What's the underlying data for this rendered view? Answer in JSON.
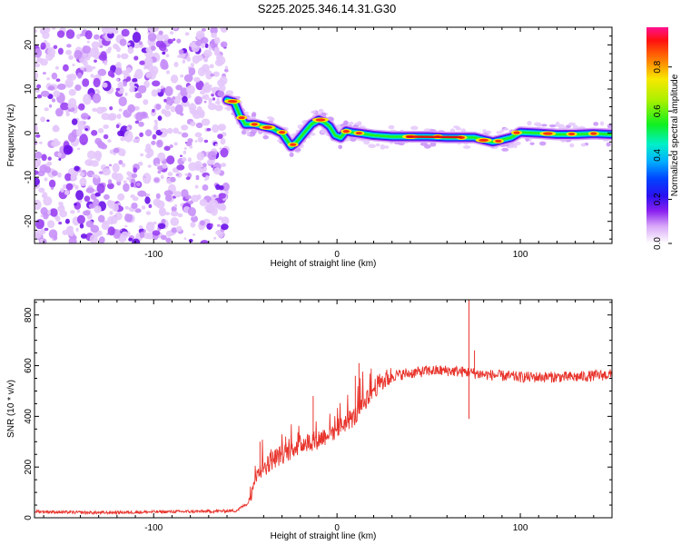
{
  "title": "S225.2025.346.14.31.G30",
  "chart_data": [
    {
      "type": "heatmap",
      "name": "spectrogram",
      "xlabel": "Height of straight line (km)",
      "ylabel": "Frequency (Hz)",
      "xlim": [
        -165,
        150
      ],
      "ylim": [
        -25,
        24
      ],
      "xticks": [
        -100,
        0,
        100
      ],
      "yticks": [
        -20,
        -10,
        0,
        10,
        20
      ],
      "noise_region_x": [
        -165,
        -60
      ],
      "ridge": {
        "x": [
          -60,
          -56,
          -53,
          -50,
          -45,
          -40,
          -35,
          -30,
          -25,
          -22,
          -18,
          -14,
          -10,
          -7,
          -4,
          -1,
          2,
          5,
          8,
          12,
          20,
          30,
          40,
          50,
          60,
          70,
          75,
          80,
          85,
          90,
          95,
          100,
          110,
          120,
          130,
          140,
          150
        ],
        "y": [
          7.5,
          7,
          4,
          2,
          2,
          1.5,
          1,
          0,
          -3,
          -2,
          0,
          2,
          3,
          2.5,
          1.5,
          -0.5,
          -1,
          0.5,
          0.2,
          0,
          -0.5,
          -0.8,
          -0.8,
          -0.8,
          -1,
          -1,
          -1,
          -1.5,
          -2,
          -1.5,
          -1,
          0.2,
          0,
          -0.3,
          -0.3,
          -0.1,
          -0.3
        ]
      },
      "colorbar": {
        "label": "Normalized spectral amplitude",
        "ticks": [
          "0.0",
          "0.2",
          "0.4",
          "0.6",
          "0.8"
        ],
        "range": [
          0,
          0.98
        ]
      }
    },
    {
      "type": "line",
      "name": "snr",
      "xlabel": "Height of straight line (km)",
      "ylabel": "SNR (10 * v/v)",
      "xlim": [
        -165,
        150
      ],
      "ylim": [
        0,
        860
      ],
      "xticks": [
        -100,
        0,
        100
      ],
      "yticks": [
        0,
        200,
        400,
        600,
        800
      ],
      "color": "#e8342c",
      "series": [
        {
          "name": "SNR",
          "x": [
            -165,
            -150,
            -130,
            -110,
            -90,
            -70,
            -55,
            -48,
            -45,
            -40,
            -35,
            -30,
            -25,
            -20,
            -15,
            -10,
            -5,
            0,
            5,
            10,
            15,
            20,
            25,
            30,
            40,
            50,
            60,
            70,
            80,
            90,
            100,
            110,
            120,
            130,
            140,
            150
          ],
          "y": [
            25,
            22,
            20,
            22,
            24,
            25,
            28,
            60,
            170,
            200,
            230,
            250,
            270,
            290,
            300,
            310,
            330,
            350,
            380,
            400,
            460,
            510,
            540,
            560,
            570,
            580,
            580,
            575,
            565,
            560,
            555,
            555,
            555,
            555,
            560,
            565
          ]
        }
      ],
      "spikes": [
        {
          "x": -42,
          "y": 300
        },
        {
          "x": -36,
          "y": 270
        },
        {
          "x": -28,
          "y": 320
        },
        {
          "x": -13,
          "y": 480
        },
        {
          "x": 10,
          "y": 560
        },
        {
          "x": 12,
          "y": 610
        },
        {
          "x": 72,
          "y": 860
        },
        {
          "x": 75,
          "y": 660
        },
        {
          "x": 72,
          "y": 390
        }
      ]
    }
  ]
}
